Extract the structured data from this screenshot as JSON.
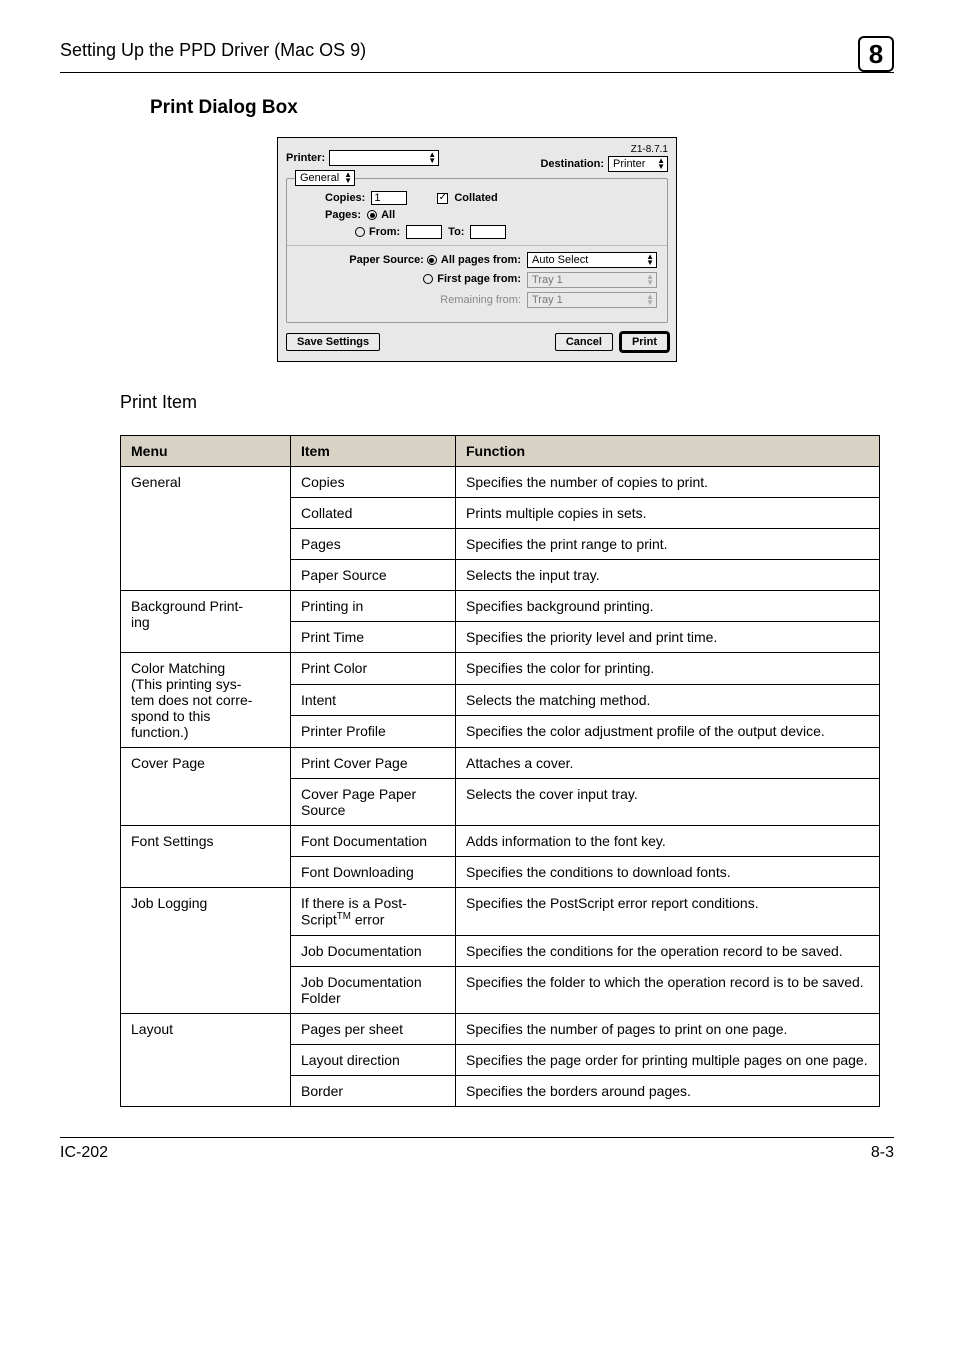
{
  "header": {
    "title": "Setting Up the PPD Driver (Mac OS 9)",
    "chapter_number": "8"
  },
  "section_title": "Print Dialog Box",
  "dialog": {
    "version": "Z1-8.7.1",
    "printer_label": "Printer:",
    "destination_label": "Destination:",
    "destination_value": "Printer",
    "panel_value": "General",
    "copies_label": "Copies:",
    "copies_value": "1",
    "collated_label": "Collated",
    "pages_label": "Pages:",
    "all_label": "All",
    "from_label": "From:",
    "to_label": "To:",
    "paper_source_label": "Paper Source:",
    "all_pages_from_label": "All pages from:",
    "all_pages_value": "Auto Select",
    "first_page_label": "First page from:",
    "first_page_value": "Tray 1",
    "remaining_label": "Remaining from:",
    "remaining_value": "Tray 1",
    "save_settings": "Save Settings",
    "cancel": "Cancel",
    "print": "Print"
  },
  "subhead": "Print Item",
  "table": {
    "headers": {
      "menu": "Menu",
      "item": "Item",
      "function": "Function"
    },
    "groups": [
      {
        "menu": "General",
        "rows": [
          {
            "item": "Copies",
            "func": "Specifies the number of copies to print."
          },
          {
            "item": "Collated",
            "func": "Prints multiple copies in sets."
          },
          {
            "item": "Pages",
            "func": "Specifies the print range to print."
          },
          {
            "item": "Paper Source",
            "func": "Selects the input tray."
          }
        ]
      },
      {
        "menu": "Background Printing",
        "rows": [
          {
            "item": "Printing in",
            "func": "Specifies background printing."
          },
          {
            "item": "Print Time",
            "func": "Specifies the priority level and print time."
          }
        ]
      },
      {
        "menu": "Color Matching\n(This printing system does not correspond to this function.)",
        "rows": [
          {
            "item": "Print Color",
            "func": "Specifies the color for printing."
          },
          {
            "item": "Intent",
            "func": "Selects the matching method."
          },
          {
            "item": "Printer Profile",
            "func": "Specifies the color adjustment profile of the output device."
          }
        ]
      },
      {
        "menu": "Cover Page",
        "rows": [
          {
            "item": "Print Cover Page",
            "func": "Attaches a cover."
          },
          {
            "item": "Cover Page Paper Source",
            "func": "Selects the cover input tray."
          }
        ]
      },
      {
        "menu": "Font Settings",
        "rows": [
          {
            "item": "Font Documentation",
            "func": "Adds information to the font key."
          },
          {
            "item": "Font Downloading",
            "func": "Specifies the conditions to download fonts."
          }
        ]
      },
      {
        "menu": "Job Logging",
        "rows": [
          {
            "item": "If there is a PostScript™ error",
            "func": "Specifies the PostScript error report conditions."
          },
          {
            "item": "Job Documentation",
            "func": "Specifies the conditions for the operation record to be saved."
          },
          {
            "item": "Job Documentation Folder",
            "func": "Specifies the folder to which the operation record is to be saved."
          }
        ]
      },
      {
        "menu": "Layout",
        "rows": [
          {
            "item": "Pages per sheet",
            "func": "Specifies the number of pages to print on one page."
          },
          {
            "item": "Layout direction",
            "func": "Specifies the page order for printing multiple pages on one page."
          },
          {
            "item": "Border",
            "func": "Specifies the borders around pages."
          }
        ]
      }
    ]
  },
  "footer": {
    "left": "IC-202",
    "right": "8-3"
  }
}
